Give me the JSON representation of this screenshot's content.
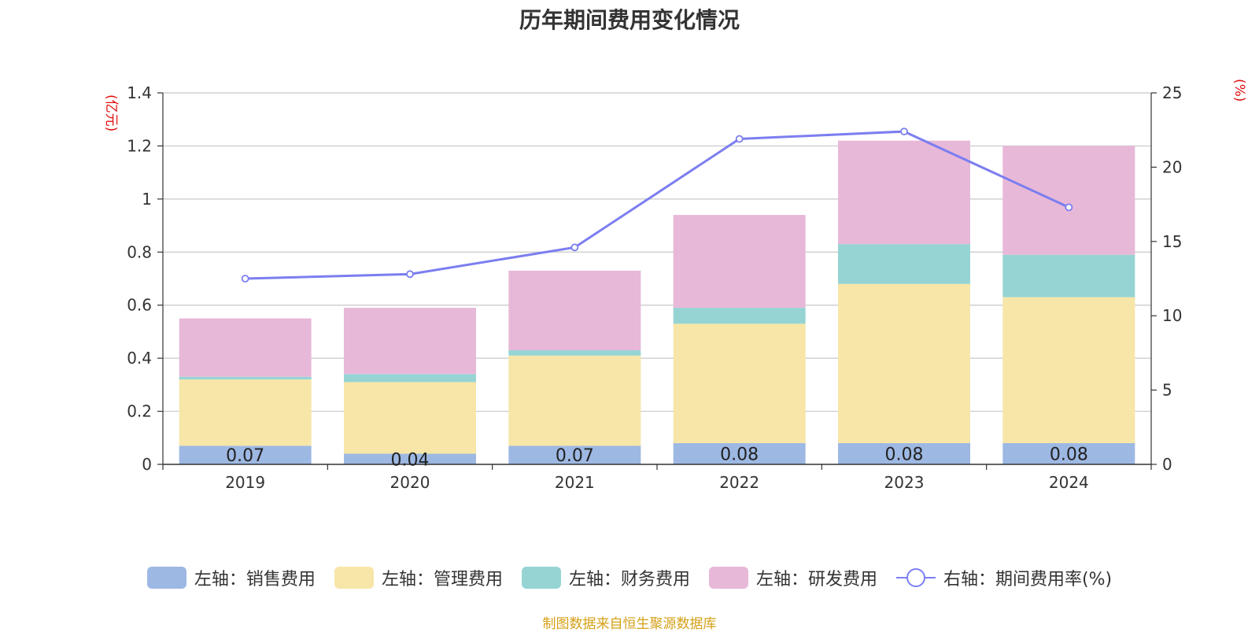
{
  "chart_data": {
    "type": "bar",
    "title": "历年期间费用变化情况",
    "left_unit": "(亿元)",
    "right_unit": "(%)",
    "categories": [
      "2019",
      "2020",
      "2021",
      "2022",
      "2023",
      "2024"
    ],
    "stacked": true,
    "series": [
      {
        "name": "左轴：销售费用",
        "axis": "left",
        "type": "bar",
        "color": "#9db8e3",
        "values": [
          0.07,
          0.04,
          0.07,
          0.08,
          0.08,
          0.08
        ],
        "labels": [
          "0.07",
          "0.04",
          "0.07",
          "0.08",
          "0.08",
          "0.08"
        ]
      },
      {
        "name": "左轴：管理费用",
        "axis": "left",
        "type": "bar",
        "color": "#f7e6a8",
        "values": [
          0.25,
          0.27,
          0.34,
          0.45,
          0.6,
          0.55
        ]
      },
      {
        "name": "左轴：财务费用",
        "axis": "left",
        "type": "bar",
        "color": "#96d4d4",
        "values": [
          0.01,
          0.03,
          0.02,
          0.06,
          0.15,
          0.16
        ]
      },
      {
        "name": "左轴：研发费用",
        "axis": "left",
        "type": "bar",
        "color": "#e8b8d8",
        "values": [
          0.22,
          0.25,
          0.3,
          0.35,
          0.39,
          0.41
        ]
      },
      {
        "name": "右轴：期间费用率(%)",
        "axis": "right",
        "type": "line",
        "color": "#7b7ef0",
        "values": [
          12.5,
          12.8,
          14.6,
          21.9,
          22.4,
          17.3
        ]
      }
    ],
    "y_left": {
      "min": 0,
      "max": 1.4,
      "ticks": [
        "0",
        "0.2",
        "0.4",
        "0.6",
        "0.8",
        "1",
        "1.2",
        "1.4"
      ]
    },
    "y_right": {
      "min": 0,
      "max": 25,
      "ticks": [
        "0",
        "5",
        "10",
        "15",
        "20",
        "25"
      ]
    },
    "grid": true,
    "legend_position": "bottom"
  },
  "source_note": "制图数据来自恒生聚源数据库"
}
